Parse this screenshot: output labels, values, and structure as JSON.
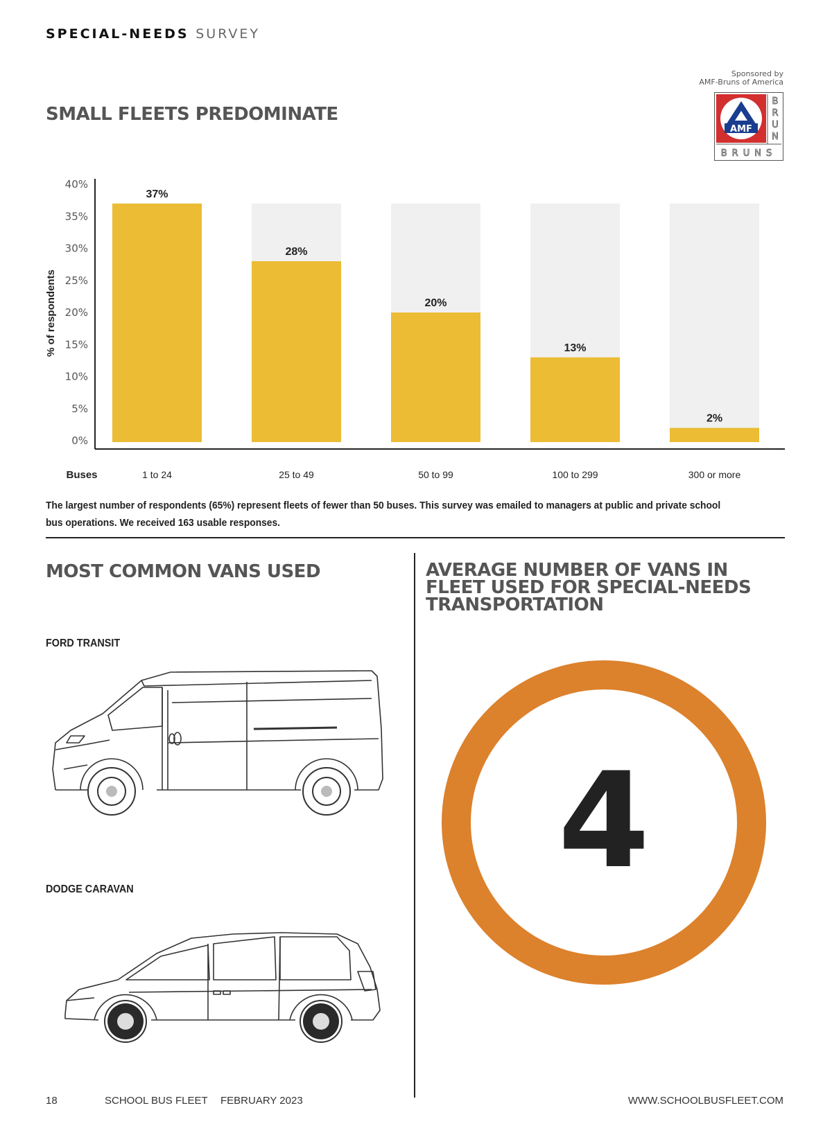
{
  "header": {
    "section_bold": "SPECIAL-NEEDS",
    "section_light": "SURVEY"
  },
  "sponsor": {
    "line1": "Sponsored by",
    "line2": "AMF-Bruns of America",
    "logo_top": "AMF",
    "logo_side": "BRUN",
    "logo_bottom": "BRUNS"
  },
  "chart_title": "SMALL FLEETS PREDOMINATE",
  "chart_data": {
    "type": "bar",
    "title": "SMALL FLEETS PREDOMINATE",
    "xlabel": "Buses",
    "ylabel": "% of respondents",
    "categories": [
      "1 to 24",
      "25 to 49",
      "50 to 99",
      "100 to 299",
      "300 or more"
    ],
    "values": [
      37,
      28,
      20,
      13,
      2
    ],
    "data_labels": [
      "37%",
      "28%",
      "20%",
      "13%",
      "2%"
    ],
    "ylim": [
      0,
      40
    ],
    "yticks": [
      0,
      5,
      10,
      15,
      20,
      25,
      30,
      35,
      40
    ],
    "ytick_labels": [
      "0%",
      "5%",
      "10%",
      "15%",
      "20%",
      "25%",
      "30%",
      "35%",
      "40%"
    ],
    "bar_color": "#ebbc34",
    "track_color": "#f0f0f0",
    "track_max": 37,
    "grid": false
  },
  "caption": "The largest number of respondents (65%) represent fleets of fewer than 50 buses. This survey was emailed to managers at public and private school bus operations. We received 163 usable responses.",
  "vans": {
    "title": "MOST COMMON VANS USED",
    "items": [
      {
        "label": "FORD TRANSIT",
        "icon": "cargo-van-icon"
      },
      {
        "label": "DODGE CARAVAN",
        "icon": "minivan-icon"
      }
    ]
  },
  "average": {
    "title": "AVERAGE NUMBER OF VANS IN FLEET USED FOR SPECIAL-NEEDS TRANSPORTATION",
    "value": "4",
    "ring_color": "#dc812c"
  },
  "footer": {
    "page": "18",
    "publication": "SCHOOL BUS FLEET",
    "date": "FEBRUARY 2023",
    "url": "WWW.SCHOOLBUSFLEET.COM"
  }
}
